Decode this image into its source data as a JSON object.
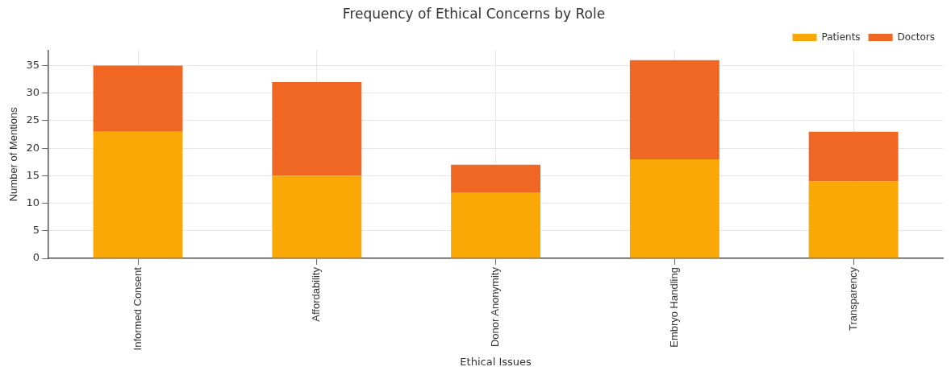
{
  "chart_data": {
    "type": "bar",
    "title": "Frequency of Ethical Concerns by Role",
    "xlabel": "Ethical Issues",
    "ylabel": "Number of Mentions",
    "categories": [
      "Informed Consent",
      "Affordability",
      "Donor Anonymity",
      "Embryo Handling",
      "Transparency"
    ],
    "series": [
      {
        "name": "Patients",
        "color": "#f9a806",
        "values": [
          23,
          15,
          12,
          18,
          14
        ]
      },
      {
        "name": "Doctors",
        "color": "#f06723",
        "values": [
          12,
          17,
          5,
          18,
          9
        ]
      }
    ],
    "stacked": true,
    "ylim": [
      0,
      37.8
    ],
    "yticks": [
      0,
      5,
      10,
      15,
      20,
      25,
      30,
      35
    ],
    "grid": true,
    "legend": "top right"
  }
}
